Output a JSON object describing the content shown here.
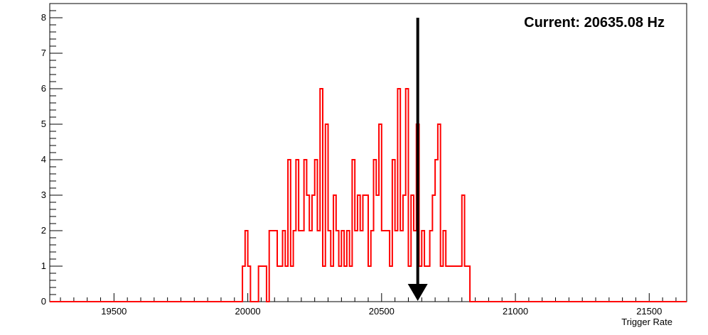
{
  "colors": {
    "series": "#ff0000",
    "frame": "#000000",
    "background": "#ffffff",
    "arrow": "#000000"
  },
  "chart_data": {
    "type": "bar",
    "style": "step-histogram",
    "title": "",
    "xlabel": "Trigger Rate",
    "ylabel": "",
    "xlim": [
      19260,
      21640
    ],
    "ylim": [
      0,
      8.4
    ],
    "grid": false,
    "legend": "none",
    "bin_width": 10,
    "x_ticks": [
      19500,
      20000,
      20500,
      21000,
      21500
    ],
    "x_tick_labels": [
      "19500",
      "20000",
      "20500",
      "21000",
      "21500"
    ],
    "y_ticks": [
      0,
      1,
      2,
      3,
      4,
      5,
      6,
      7,
      8
    ],
    "y_tick_labels": [
      "0",
      "1",
      "2",
      "3",
      "4",
      "5",
      "6",
      "7",
      "8"
    ],
    "series": [
      {
        "bins": [
          [
            19980,
            1
          ],
          [
            19990,
            2
          ],
          [
            20000,
            1
          ],
          [
            20040,
            1
          ],
          [
            20050,
            1
          ],
          [
            20060,
            1
          ],
          [
            20080,
            2
          ],
          [
            20090,
            2
          ],
          [
            20100,
            2
          ],
          [
            20110,
            1
          ],
          [
            20120,
            1
          ],
          [
            20130,
            2
          ],
          [
            20140,
            1
          ],
          [
            20150,
            4
          ],
          [
            20160,
            1
          ],
          [
            20170,
            2
          ],
          [
            20180,
            4
          ],
          [
            20190,
            2
          ],
          [
            20200,
            2
          ],
          [
            20210,
            4
          ],
          [
            20220,
            3
          ],
          [
            20230,
            2
          ],
          [
            20240,
            3
          ],
          [
            20250,
            4
          ],
          [
            20260,
            2
          ],
          [
            20270,
            6
          ],
          [
            20280,
            1
          ],
          [
            20290,
            5
          ],
          [
            20300,
            2
          ],
          [
            20310,
            1
          ],
          [
            20320,
            3
          ],
          [
            20330,
            2
          ],
          [
            20340,
            1
          ],
          [
            20350,
            2
          ],
          [
            20360,
            1
          ],
          [
            20370,
            2
          ],
          [
            20380,
            1
          ],
          [
            20390,
            4
          ],
          [
            20400,
            2
          ],
          [
            20410,
            3
          ],
          [
            20420,
            2
          ],
          [
            20430,
            3
          ],
          [
            20440,
            3
          ],
          [
            20450,
            1
          ],
          [
            20460,
            2
          ],
          [
            20470,
            4
          ],
          [
            20480,
            3
          ],
          [
            20490,
            5
          ],
          [
            20500,
            2
          ],
          [
            20510,
            2
          ],
          [
            20520,
            2
          ],
          [
            20530,
            1
          ],
          [
            20540,
            4
          ],
          [
            20550,
            2
          ],
          [
            20560,
            6
          ],
          [
            20570,
            2
          ],
          [
            20580,
            3
          ],
          [
            20590,
            6
          ],
          [
            20600,
            1
          ],
          [
            20610,
            3
          ],
          [
            20620,
            2
          ],
          [
            20630,
            5
          ],
          [
            20640,
            1
          ],
          [
            20650,
            2
          ],
          [
            20660,
            1
          ],
          [
            20670,
            1
          ],
          [
            20680,
            2
          ],
          [
            20690,
            3
          ],
          [
            20700,
            4
          ],
          [
            20710,
            5
          ],
          [
            20720,
            1
          ],
          [
            20730,
            2
          ],
          [
            20740,
            1
          ],
          [
            20750,
            1
          ],
          [
            20760,
            1
          ],
          [
            20770,
            1
          ],
          [
            20780,
            1
          ],
          [
            20790,
            1
          ],
          [
            20800,
            3
          ],
          [
            20810,
            1
          ],
          [
            20820,
            1
          ]
        ]
      }
    ],
    "marker": {
      "value": 20635.08,
      "label": "Current: 20635.08 Hz"
    }
  }
}
